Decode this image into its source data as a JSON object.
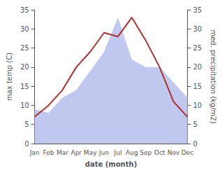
{
  "chart_data": {
    "type": "line",
    "categories": [
      "Jan",
      "Feb",
      "Mar",
      "Apr",
      "May",
      "Jun",
      "Jul",
      "Aug",
      "Sep",
      "Oct",
      "Nov",
      "Dec"
    ],
    "series": [
      {
        "type": "area",
        "color": "#c0c8f0",
        "axis": "y2",
        "values": [
          9,
          8,
          12,
          14,
          19,
          24,
          33,
          22,
          20,
          20,
          16,
          12
        ]
      },
      {
        "type": "line",
        "color": "#b03030",
        "values": [
          7,
          10,
          14,
          20,
          24,
          29,
          28,
          33,
          27,
          20,
          11,
          7
        ]
      }
    ],
    "xlabel": "date (month)",
    "ylabel": "max temp (C)",
    "y2label": "med. precipitation (kg/m2)",
    "ylim": [
      0,
      35
    ],
    "yticks": [
      0,
      5,
      10,
      15,
      20,
      25,
      30,
      35
    ],
    "y2lim": [
      0,
      35
    ],
    "y2ticks": [
      0,
      5,
      10,
      15,
      20,
      25,
      30,
      35
    ],
    "grid": false
  }
}
